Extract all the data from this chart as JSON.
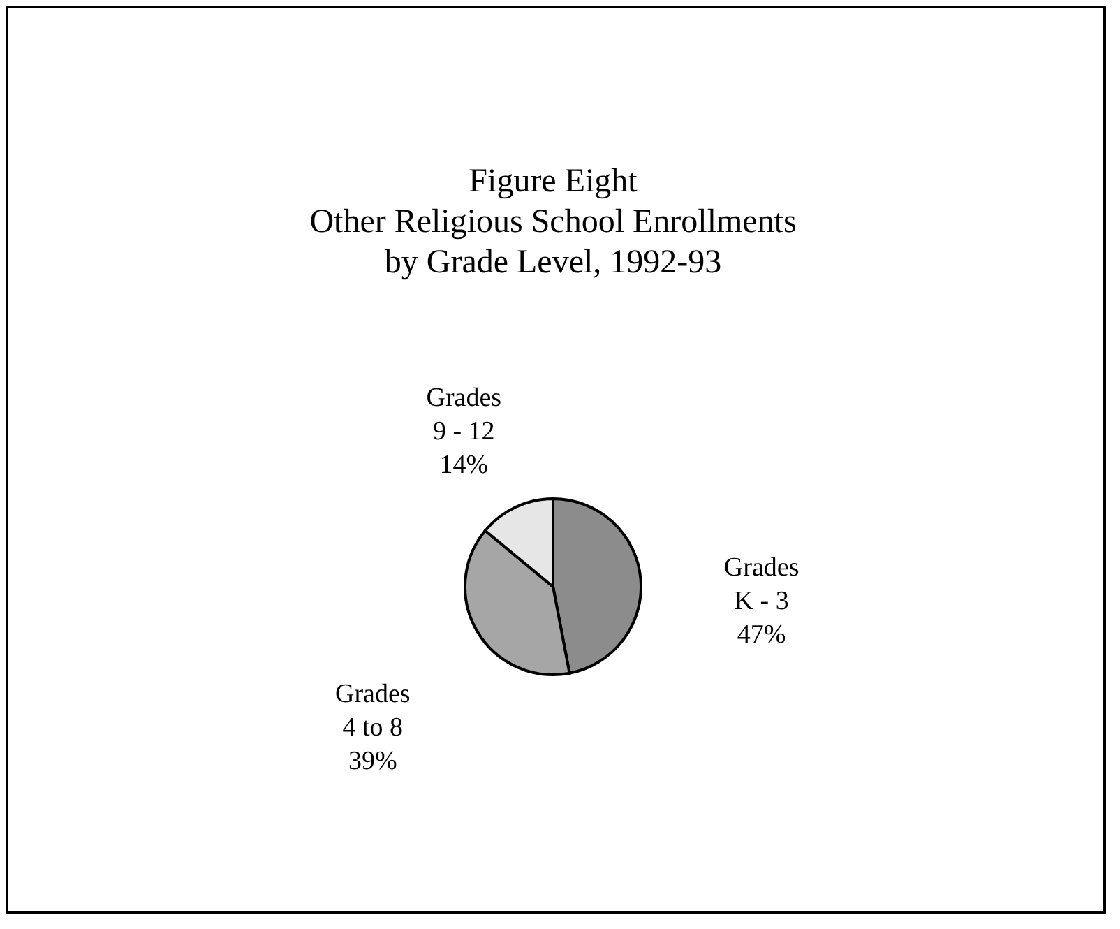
{
  "chart_data": {
    "type": "pie",
    "title": "Figure Eight\nOther Religious School Enrollments\nby Grade Level, 1992-93",
    "categories": [
      "Grades K - 3",
      "Grades 4 to 8",
      "Grades 9 - 12"
    ],
    "values": [
      47,
      39,
      14
    ],
    "value_labels": [
      "47%",
      "39%",
      "14%"
    ],
    "colors": [
      "#8c8c8c",
      "#a6a6a6",
      "#e6e6e6"
    ],
    "legend": false
  }
}
